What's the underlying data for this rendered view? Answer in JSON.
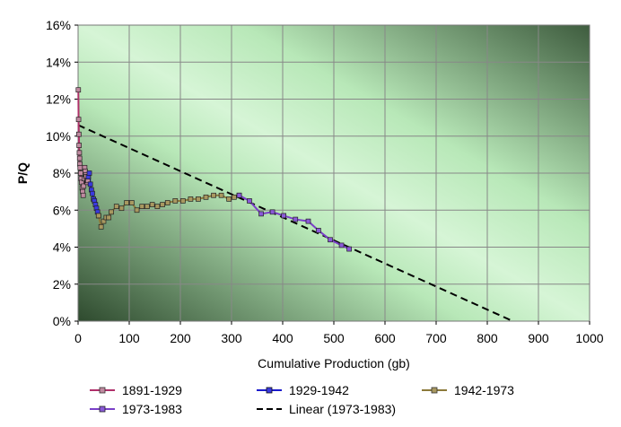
{
  "chart_data": {
    "type": "line",
    "title": "",
    "xlabel": "Cumulative Production (gb)",
    "ylabel": "P/Q",
    "xlim": [
      0,
      1000
    ],
    "ylim": [
      0,
      16
    ],
    "x_ticks": [
      0,
      100,
      200,
      300,
      400,
      500,
      600,
      700,
      800,
      900,
      1000
    ],
    "y_ticks": [
      "0%",
      "2%",
      "4%",
      "6%",
      "8%",
      "10%",
      "12%",
      "14%",
      "16%"
    ],
    "grid": true,
    "legend_position": "bottom",
    "series": [
      {
        "name": "1891-1929",
        "color": "#b0306a",
        "marker": "square",
        "points": [
          [
            0.5,
            12.5
          ],
          [
            1,
            10.9
          ],
          [
            1.5,
            10.1
          ],
          [
            2,
            9.5
          ],
          [
            2.5,
            9.1
          ],
          [
            3,
            8.8
          ],
          [
            3.5,
            8.5
          ],
          [
            4,
            8.3
          ],
          [
            5,
            8.0
          ],
          [
            6,
            7.7
          ],
          [
            7,
            7.5
          ],
          [
            8,
            7.2
          ],
          [
            9,
            7.0
          ],
          [
            10,
            6.8
          ],
          [
            11,
            7.3
          ],
          [
            12,
            7.7
          ],
          [
            13,
            8.3
          ],
          [
            14,
            8.1
          ],
          [
            15,
            7.9
          ],
          [
            16,
            7.8
          ],
          [
            17,
            7.6
          ],
          [
            18,
            7.5
          ],
          [
            19,
            7.6
          ],
          [
            20,
            7.8
          ]
        ]
      },
      {
        "name": "1929-1942",
        "color": "#1a1acc",
        "marker": "square",
        "points": [
          [
            20,
            7.8
          ],
          [
            22,
            8.0
          ],
          [
            24,
            7.4
          ],
          [
            26,
            7.1
          ],
          [
            28,
            6.9
          ],
          [
            30,
            6.6
          ],
          [
            32,
            6.5
          ],
          [
            34,
            6.3
          ],
          [
            36,
            6.1
          ],
          [
            38,
            5.9
          ],
          [
            40,
            5.7
          ]
        ]
      },
      {
        "name": "1942-1973",
        "color": "#8c7a3a",
        "marker": "square",
        "points": [
          [
            40,
            5.7
          ],
          [
            45,
            5.1
          ],
          [
            50,
            5.4
          ],
          [
            55,
            5.6
          ],
          [
            60,
            5.6
          ],
          [
            65,
            5.9
          ],
          [
            75,
            6.2
          ],
          [
            85,
            6.1
          ],
          [
            95,
            6.4
          ],
          [
            105,
            6.4
          ],
          [
            115,
            6.0
          ],
          [
            125,
            6.2
          ],
          [
            135,
            6.2
          ],
          [
            145,
            6.3
          ],
          [
            155,
            6.2
          ],
          [
            165,
            6.3
          ],
          [
            175,
            6.4
          ],
          [
            190,
            6.5
          ],
          [
            205,
            6.5
          ],
          [
            220,
            6.6
          ],
          [
            235,
            6.6
          ],
          [
            250,
            6.7
          ],
          [
            265,
            6.8
          ],
          [
            280,
            6.8
          ],
          [
            295,
            6.6
          ],
          [
            305,
            6.7
          ],
          [
            315,
            6.8
          ]
        ]
      },
      {
        "name": "1973-1983",
        "color": "#7a40c8",
        "marker": "square",
        "points": [
          [
            315,
            6.8
          ],
          [
            335,
            6.5
          ],
          [
            358,
            5.8
          ],
          [
            380,
            5.9
          ],
          [
            402,
            5.7
          ],
          [
            425,
            5.5
          ],
          [
            450,
            5.4
          ],
          [
            470,
            4.9
          ],
          [
            493,
            4.4
          ],
          [
            515,
            4.1
          ],
          [
            530,
            3.9
          ]
        ]
      }
    ],
    "trendline": {
      "name": "Linear (1973-1983)",
      "color": "#000000",
      "style": "dashed",
      "points": [
        [
          0,
          10.6
        ],
        [
          850,
          0
        ]
      ]
    }
  }
}
